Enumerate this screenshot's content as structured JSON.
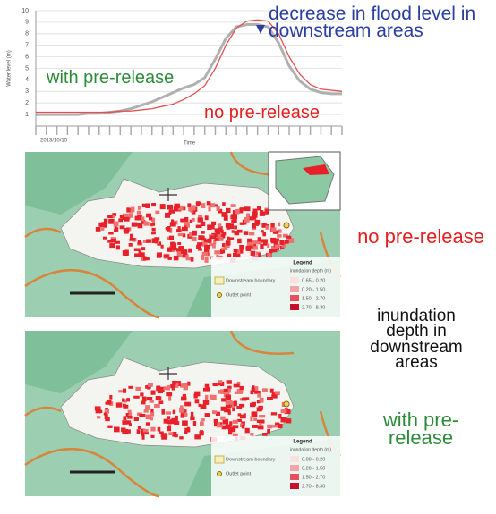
{
  "chart_data": {
    "type": "line",
    "y_label": "Water level (m)",
    "x_label": "Time",
    "x_start_label": "2013/10/15",
    "annotation": "decrease in flood level in downstream areas",
    "categories": [
      null,
      null,
      null,
      null,
      null,
      null,
      null,
      null,
      null,
      null,
      null,
      null,
      null,
      null,
      null,
      null,
      null,
      null,
      null,
      null,
      null,
      null,
      null,
      null,
      null,
      null,
      null,
      null,
      null,
      null
    ],
    "series": [
      {
        "name": "with pre-release",
        "color": "#b0b0b0",
        "values": [
          1.0,
          1.0,
          1.0,
          1.0,
          1.0,
          1.1,
          1.1,
          1.2,
          1.3,
          1.5,
          1.8,
          2.1,
          2.5,
          2.9,
          3.3,
          3.6,
          4.2,
          5.8,
          7.6,
          8.6,
          8.8,
          8.8,
          8.6,
          7.2,
          5.2,
          3.9,
          3.2,
          2.9,
          2.8,
          2.8
        ]
      },
      {
        "name": "no pre-release",
        "color": "#e05050",
        "values": [
          1.2,
          1.2,
          1.2,
          1.2,
          1.2,
          1.2,
          1.2,
          1.2,
          1.3,
          1.3,
          1.4,
          1.5,
          1.7,
          1.9,
          2.3,
          2.8,
          3.5,
          5.0,
          7.0,
          8.5,
          9.1,
          9.2,
          9.1,
          8.0,
          6.0,
          4.5,
          3.6,
          3.2,
          3.1,
          3.0
        ]
      }
    ],
    "ylim": [
      0,
      10
    ],
    "yticks": [
      1,
      2,
      3,
      4,
      5,
      6,
      7,
      8,
      9,
      10
    ],
    "grid": true
  },
  "maps": [
    {
      "legend": {
        "title": "Legend",
        "depth_title": "inundation depth (m)",
        "classes": [
          "0.65 - 0.20",
          "0.20 - 1.50",
          "1.50 - 2.70",
          "2.70 - 8.30"
        ],
        "downstream": "Downstream boundary",
        "outlet": "Outlet point"
      }
    },
    {
      "legend": {
        "title": "Legend",
        "depth_title": "inundation depth (m)",
        "classes": [
          "0.00 - 0.20",
          "0.20 - 1.50",
          "1.50 - 2.70",
          "2.70 - 8.30"
        ],
        "downstream": "Downstream boundary",
        "outlet": "Outlet point"
      }
    }
  ],
  "side_labels": {
    "top": "no pre-release",
    "middle": "inundation depth in downstream areas",
    "bottom": "with pre-release"
  }
}
